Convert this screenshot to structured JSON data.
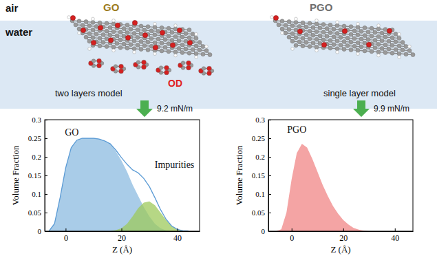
{
  "chart_data": [
    {
      "type": "area",
      "x": [
        -6,
        -4,
        -2,
        0,
        2,
        4,
        6,
        8,
        10,
        12,
        14,
        16,
        18,
        20,
        22,
        24,
        26,
        28,
        30,
        32,
        34,
        36,
        38,
        40,
        42,
        44
      ],
      "xlim": [
        -7.5,
        48
      ],
      "xticks": [
        0,
        20,
        40
      ],
      "ylim": [
        0,
        0.3
      ],
      "yticks": [
        0,
        0.05,
        0.1,
        0.15,
        0.2,
        0.25,
        0.3
      ],
      "x_label": "Z (Å)",
      "y_label": "Volume Fraction",
      "series": [
        {
          "name": "GO",
          "type": "area",
          "color": "#a9cce8",
          "values": [
            0,
            0.02,
            0.09,
            0.17,
            0.225,
            0.245,
            0.25,
            0.25,
            0.25,
            0.248,
            0.243,
            0.235,
            0.215,
            0.19,
            0.16,
            0.125,
            0.095,
            0.065,
            0.04,
            0.02,
            0.008,
            0.002,
            0,
            0,
            0,
            0
          ]
        },
        {
          "type": "line",
          "color": "#5b9bd5",
          "values": [
            0,
            0.02,
            0.09,
            0.17,
            0.225,
            0.245,
            0.25,
            0.25,
            0.25,
            0.248,
            0.243,
            0.235,
            0.218,
            0.198,
            0.18,
            0.165,
            0.157,
            0.142,
            0.12,
            0.09,
            0.058,
            0.032,
            0.014,
            0.005,
            0.001,
            0
          ]
        },
        {
          "name": "Impurities",
          "type": "area",
          "color": "#9dc95c",
          "values": [
            0,
            0,
            0,
            0,
            0,
            0,
            0,
            0,
            0,
            0,
            0,
            0,
            0.003,
            0.008,
            0.02,
            0.04,
            0.062,
            0.077,
            0.08,
            0.07,
            0.05,
            0.03,
            0.014,
            0.005,
            0.001,
            0
          ]
        }
      ]
    },
    {
      "type": "area",
      "x": [
        -6,
        -4,
        -2,
        0,
        2,
        4,
        6,
        8,
        10,
        12,
        14,
        16,
        18,
        20,
        22,
        24,
        26,
        28,
        30,
        32,
        34,
        36,
        38,
        40,
        42,
        44
      ],
      "xlim": [
        -9,
        47
      ],
      "xticks": [
        0,
        20,
        40
      ],
      "ylim": [
        0,
        0.3
      ],
      "yticks": [
        0,
        0.05,
        0.1,
        0.15,
        0.2,
        0.25,
        0.3
      ],
      "x_label": "Z (Å)",
      "y_label": "Volume Fraction",
      "series": [
        {
          "name": "PGO",
          "type": "area",
          "color": "#f4a4a4",
          "values": [
            0,
            0.005,
            0.05,
            0.14,
            0.21,
            0.235,
            0.225,
            0.195,
            0.16,
            0.125,
            0.095,
            0.068,
            0.047,
            0.03,
            0.018,
            0.009,
            0.004,
            0.001,
            0,
            0,
            0,
            0,
            0,
            0,
            0,
            0
          ]
        }
      ]
    }
  ],
  "diagram": {
    "phases": [
      "air",
      "water"
    ],
    "molecules": [
      {
        "label": "GO",
        "model": "two layers model",
        "layer_label": "OD",
        "surface_pressure": "9.2 mN/m"
      },
      {
        "label": "PGO",
        "model": "single layer model",
        "surface_pressure": "9.9 mN/m"
      }
    ]
  }
}
